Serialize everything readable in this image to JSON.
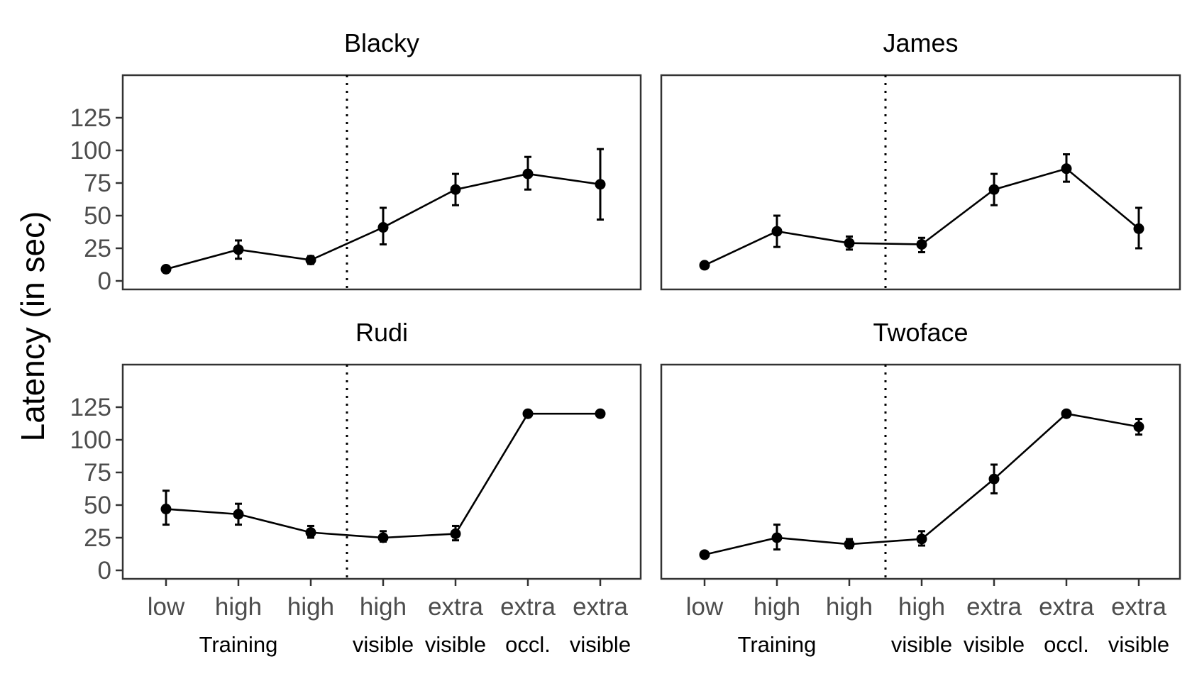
{
  "chart_data": {
    "type": "line",
    "ylabel": "Latency (in sec)",
    "ylim": [
      0,
      125
    ],
    "yticks": [
      0,
      25,
      50,
      75,
      100,
      125
    ],
    "categories": [
      {
        "top": "low",
        "bottom": ""
      },
      {
        "top": "high",
        "bottom": "Training"
      },
      {
        "top": "high",
        "bottom": ""
      },
      {
        "top": "high",
        "bottom": "visible"
      },
      {
        "top": "extra",
        "bottom": "visible"
      },
      {
        "top": "extra",
        "bottom": "occl."
      },
      {
        "top": "extra",
        "bottom": "visible"
      }
    ],
    "divider_after_category_index": 2.5,
    "grid": false,
    "panels": [
      {
        "title": "Blacky",
        "values": [
          9,
          24,
          16,
          41,
          70,
          82,
          74
        ],
        "err_low": [
          9,
          17,
          13,
          28,
          58,
          70,
          47
        ],
        "err_high": [
          9,
          31,
          19,
          56,
          82,
          95,
          101
        ]
      },
      {
        "title": "James",
        "values": [
          12,
          38,
          29,
          28,
          70,
          86,
          40
        ],
        "err_low": [
          11,
          26,
          24,
          22,
          58,
          76,
          25
        ],
        "err_high": [
          13,
          50,
          34,
          33,
          82,
          97,
          56
        ]
      },
      {
        "title": "Rudi",
        "values": [
          47,
          43,
          29,
          25,
          28,
          120,
          120
        ],
        "err_low": [
          35,
          35,
          25,
          22,
          23,
          120,
          120
        ],
        "err_high": [
          61,
          51,
          34,
          30,
          34,
          120,
          120
        ]
      },
      {
        "title": "Twoface",
        "values": [
          12,
          25,
          20,
          24,
          70,
          120,
          110
        ],
        "err_low": [
          11,
          16,
          17,
          19,
          59,
          120,
          104
        ],
        "err_high": [
          13,
          35,
          24,
          30,
          81,
          120,
          116
        ]
      }
    ]
  }
}
